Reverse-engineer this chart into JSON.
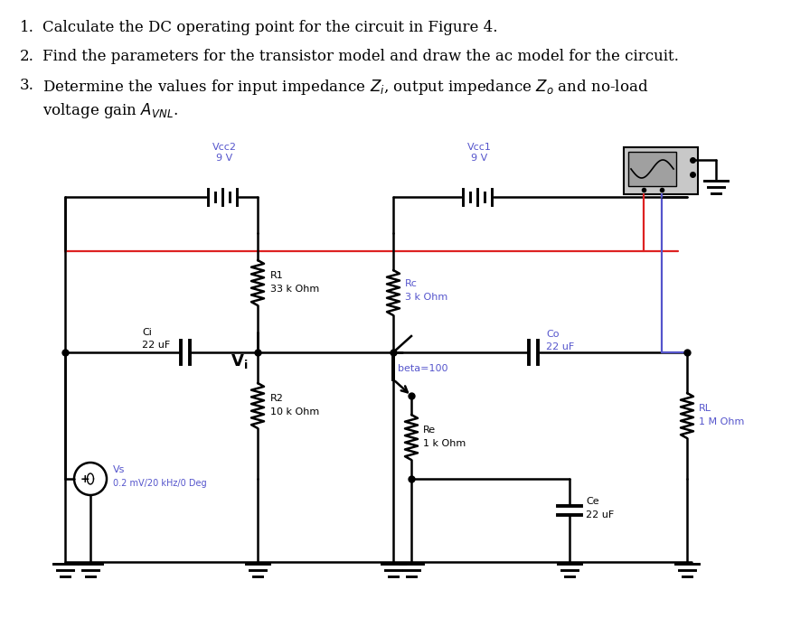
{
  "bg": "#ffffff",
  "black": "#000000",
  "blue": "#5555cc",
  "red": "#dd2222",
  "lw": 1.8,
  "text1": "1.   Calculate the DC operating point for the circuit in Figure 4.",
  "text2": "2.   Find the parameters for the transistor model and draw the ac model for the circuit.",
  "text3a": "3.   Determine the values for input impedance $Z_i$, output impedance $Z_o$ and no-load",
  "text3b": "     voltage gain $A_{VNL}$.",
  "labels": {
    "Vcc2": [
      "Vcc2",
      "9 V"
    ],
    "Vcc1": [
      "Vcc1",
      "9 V"
    ],
    "R1": [
      "R1",
      "33 k Ohm"
    ],
    "R2": [
      "R2",
      "10 k Ohm"
    ],
    "Rc": [
      "Rc",
      "3 k Ohm"
    ],
    "Re": [
      "Re",
      "1 k Ohm"
    ],
    "Ci": [
      "Ci",
      "22 uF"
    ],
    "Co": [
      "Co",
      "22 uF"
    ],
    "Ce": [
      "Ce",
      "22 uF"
    ],
    "RL": [
      "RL",
      "1 M Ohm"
    ],
    "Vs": [
      "Vs",
      "0.2 mV/20 kHz/0 Deg"
    ],
    "beta": "beta=100",
    "Vi": "Vi"
  }
}
